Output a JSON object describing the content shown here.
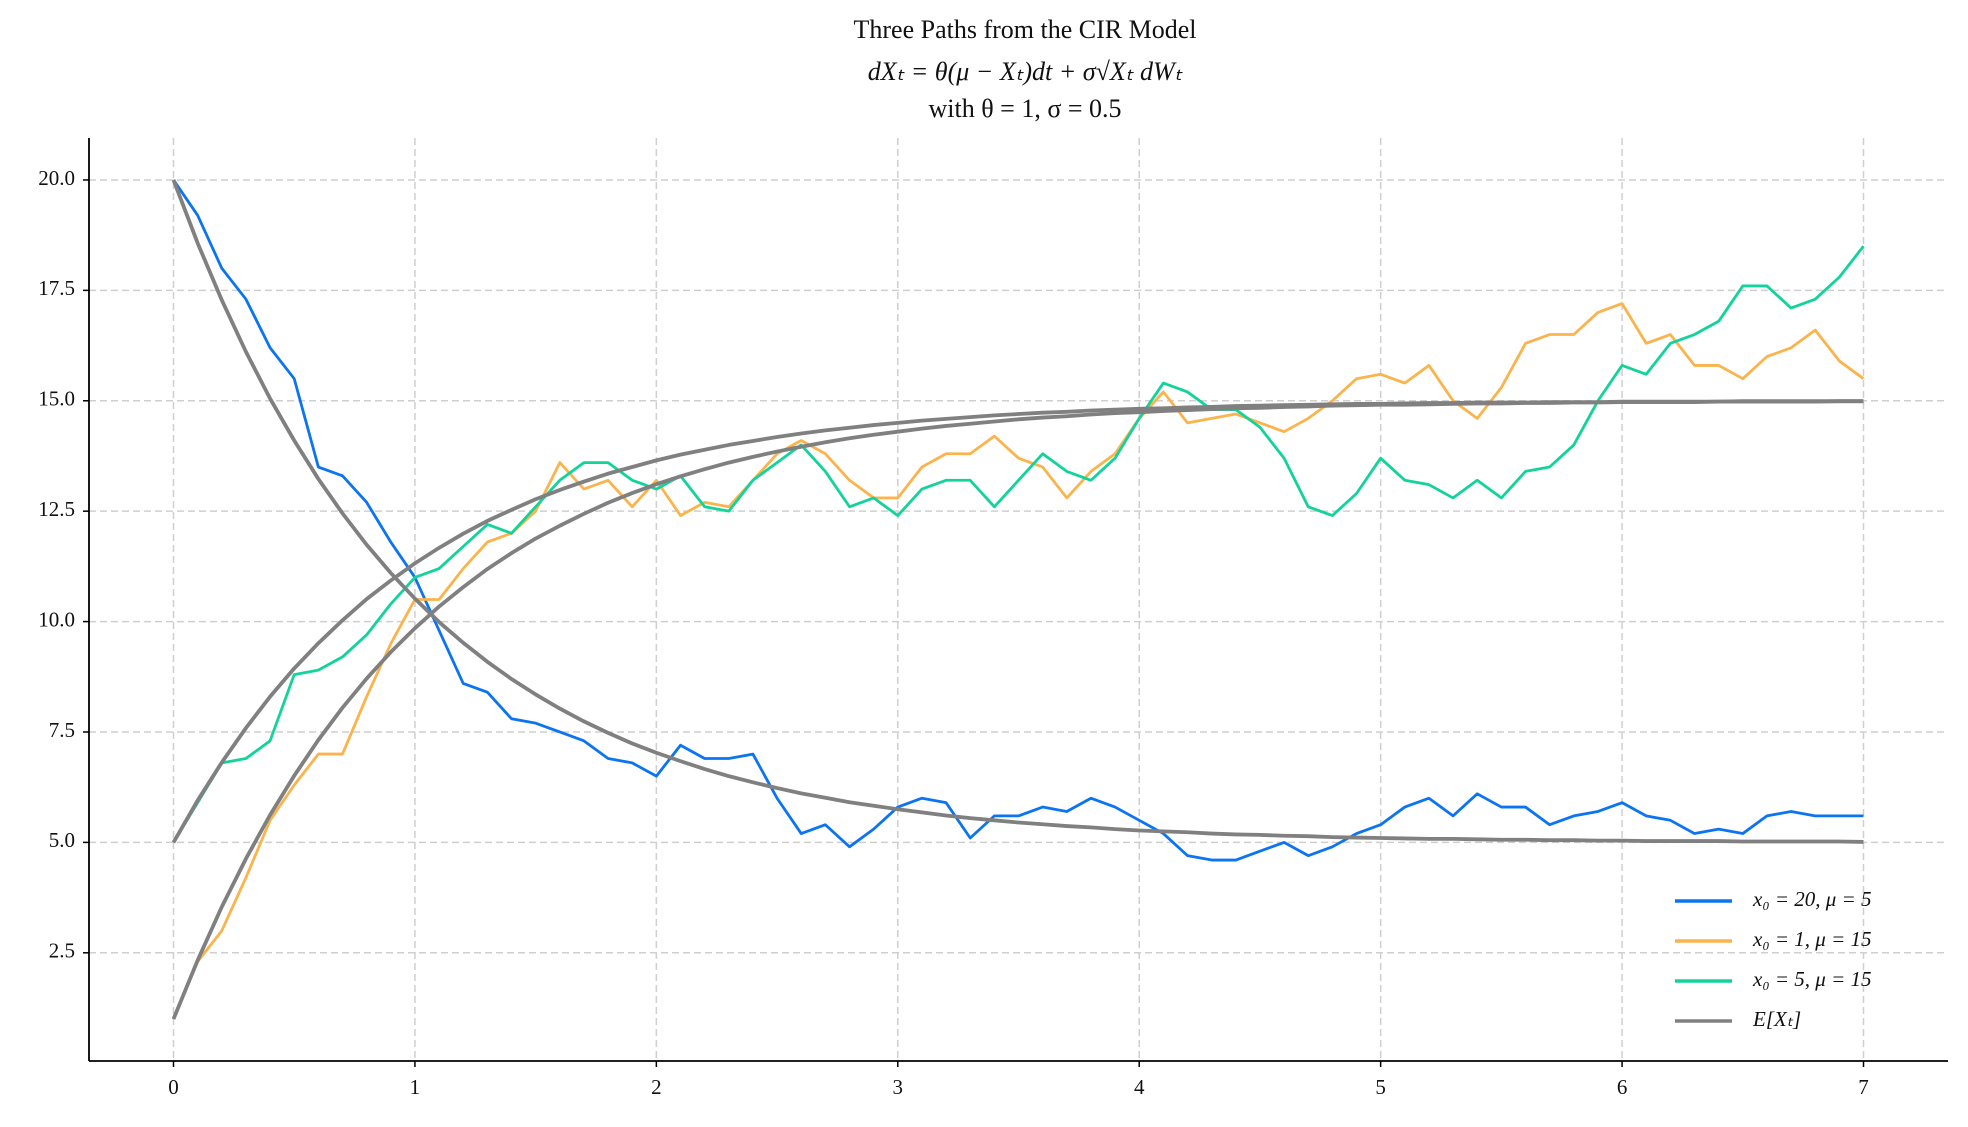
{
  "chart_data": {
    "type": "line",
    "title": "Three Paths from the CIR Model",
    "subtitle": "dXₜ = θ(μ − Xₜ)dt + σ√Xₜ dWₜ",
    "annotation": "with θ = 1, σ = 0.5",
    "x": [
      0,
      0.1,
      0.2,
      0.3,
      0.4,
      0.5,
      0.6,
      0.7,
      0.8,
      0.9,
      1,
      1.1,
      1.2,
      1.3,
      1.4,
      1.5,
      1.6,
      1.7,
      1.8,
      1.9,
      2,
      2.1,
      2.2,
      2.3,
      2.4,
      2.5,
      2.6,
      2.7,
      2.8,
      2.9,
      3,
      3.1,
      3.2,
      3.3,
      3.4,
      3.5,
      3.6,
      3.7,
      3.8,
      3.9,
      4,
      4.1,
      4.2,
      4.3,
      4.4,
      4.5,
      4.6,
      4.7,
      4.8,
      4.9,
      5,
      5.1,
      5.2,
      5.3,
      5.4,
      5.5,
      5.6,
      5.7,
      5.8,
      5.9,
      6,
      6.1,
      6.2,
      6.3,
      6.4,
      6.5,
      6.6,
      6.7,
      6.8,
      6.9,
      7
    ],
    "series": [
      {
        "name": "x₀ = 20, μ = 5",
        "color": "#0b74f2",
        "values": [
          20,
          19.2,
          18.0,
          17.3,
          16.2,
          15.5,
          13.5,
          13.3,
          12.7,
          11.8,
          11.0,
          9.8,
          8.6,
          8.4,
          7.8,
          7.7,
          7.5,
          7.3,
          6.9,
          6.8,
          6.5,
          7.2,
          6.9,
          6.9,
          7.0,
          6.0,
          5.2,
          5.4,
          4.9,
          5.3,
          5.8,
          6.0,
          5.9,
          5.1,
          5.6,
          5.6,
          5.8,
          5.7,
          6.0,
          5.8,
          5.5,
          5.2,
          4.7,
          4.6,
          4.6,
          4.8,
          5.0,
          4.7,
          4.9,
          5.2,
          5.4,
          5.8,
          6.0,
          5.6,
          6.1,
          5.8,
          5.8,
          5.4,
          5.6,
          5.7,
          5.9,
          5.6,
          5.5,
          5.2,
          5.3,
          5.2,
          5.6,
          5.7,
          5.6,
          5.6,
          5.6
        ]
      },
      {
        "name": "x₀ = 1, μ = 15",
        "color": "#fbb44c",
        "values": [
          1.0,
          2.3,
          3.0,
          4.2,
          5.5,
          6.3,
          7.0,
          7.0,
          8.3,
          9.5,
          10.5,
          10.5,
          11.2,
          11.8,
          12.0,
          12.5,
          13.6,
          13.0,
          13.2,
          12.6,
          13.2,
          12.4,
          12.7,
          12.6,
          13.2,
          13.8,
          14.1,
          13.8,
          13.2,
          12.8,
          12.8,
          13.5,
          13.8,
          13.8,
          14.2,
          13.7,
          13.5,
          12.8,
          13.4,
          13.8,
          14.6,
          15.2,
          14.5,
          14.6,
          14.7,
          14.5,
          14.3,
          14.6,
          15.0,
          15.5,
          15.6,
          15.4,
          15.8,
          15.0,
          14.6,
          15.3,
          16.3,
          16.5,
          16.5,
          17.0,
          17.2,
          16.3,
          16.5,
          15.8,
          15.8,
          15.5,
          16.0,
          16.2,
          16.6,
          15.9,
          15.5
        ]
      },
      {
        "name": "x₀ = 5, μ = 15",
        "color": "#12d39a",
        "values": [
          5.0,
          5.9,
          6.8,
          6.9,
          7.3,
          8.8,
          8.9,
          9.2,
          9.7,
          10.4,
          11.0,
          11.2,
          11.7,
          12.2,
          12.0,
          12.6,
          13.2,
          13.6,
          13.6,
          13.2,
          13.0,
          13.3,
          12.6,
          12.5,
          13.2,
          13.6,
          14.0,
          13.4,
          12.6,
          12.8,
          12.4,
          13.0,
          13.2,
          13.2,
          12.6,
          13.2,
          13.8,
          13.4,
          13.2,
          13.7,
          14.6,
          15.4,
          15.2,
          14.8,
          14.8,
          14.4,
          13.7,
          12.6,
          12.4,
          12.9,
          13.7,
          13.2,
          13.1,
          12.8,
          13.2,
          12.8,
          13.4,
          13.5,
          14.0,
          15.0,
          15.8,
          15.6,
          16.3,
          16.5,
          16.8,
          17.6,
          17.6,
          17.1,
          17.3,
          17.8,
          18.5
        ]
      },
      {
        "name": "E[Xₜ]",
        "color": "#808080",
        "values": [
          20,
          18.57,
          17.28,
          16.11,
          15.05,
          14.1,
          13.23,
          12.45,
          11.74,
          11.1,
          10.52,
          9.99,
          9.52,
          9.09,
          8.7,
          8.35,
          8.03,
          7.74,
          7.48,
          7.24,
          7.03,
          6.84,
          6.66,
          6.5,
          6.36,
          6.23,
          6.11,
          6.01,
          5.91,
          5.83,
          5.75,
          5.68,
          5.61,
          5.55,
          5.5,
          5.45,
          5.41,
          5.37,
          5.34,
          5.3,
          5.27,
          5.25,
          5.23,
          5.2,
          5.18,
          5.17,
          5.15,
          5.14,
          5.12,
          5.11,
          5.1,
          5.09,
          5.08,
          5.08,
          5.07,
          5.06,
          5.06,
          5.05,
          5.05,
          5.04,
          5.04,
          5.03,
          5.03,
          5.03,
          5.03,
          5.02,
          5.02,
          5.02,
          5.02,
          5.02,
          5.01
        ]
      },
      {
        "color": "#808080",
        "values": [
          1,
          2.33,
          3.54,
          4.63,
          5.62,
          6.51,
          7.32,
          8.05,
          8.71,
          9.31,
          9.85,
          10.34,
          10.78,
          11.19,
          11.55,
          11.88,
          12.17,
          12.44,
          12.69,
          12.91,
          13.11,
          13.29,
          13.45,
          13.6,
          13.73,
          13.85,
          13.96,
          14.06,
          14.15,
          14.23,
          14.3,
          14.37,
          14.43,
          14.48,
          14.53,
          14.58,
          14.62,
          14.65,
          14.69,
          14.72,
          14.74,
          14.77,
          14.79,
          14.81,
          14.83,
          14.84,
          14.86,
          14.87,
          14.89,
          14.9,
          14.91,
          14.91,
          14.92,
          14.93,
          14.94,
          14.94,
          14.95,
          14.95,
          14.96,
          14.96,
          14.97,
          14.97,
          14.97,
          14.97,
          14.98,
          14.98,
          14.98,
          14.98,
          14.98,
          14.99,
          14.99
        ]
      },
      {
        "color": "#808080",
        "values": [
          5,
          5.95,
          6.81,
          7.59,
          8.3,
          8.94,
          9.51,
          10.03,
          10.51,
          10.93,
          11.32,
          11.67,
          11.99,
          12.28,
          12.53,
          12.77,
          12.98,
          13.17,
          13.35,
          13.5,
          13.65,
          13.78,
          13.89,
          14.0,
          14.09,
          14.18,
          14.26,
          14.33,
          14.39,
          14.45,
          14.5,
          14.55,
          14.59,
          14.63,
          14.67,
          14.7,
          14.73,
          14.75,
          14.78,
          14.8,
          14.82,
          14.83,
          14.85,
          14.86,
          14.88,
          14.89,
          14.9,
          14.91,
          14.92,
          14.93,
          14.93,
          14.94,
          14.95,
          14.95,
          14.96,
          14.96,
          14.96,
          14.97,
          14.97,
          14.97,
          14.98,
          14.98,
          14.98,
          14.98,
          14.98,
          14.99,
          14.99,
          14.99,
          14.99,
          14.99,
          14.99
        ]
      }
    ],
    "xlim": [
      -0.35,
      7.35
    ],
    "ylim": [
      0.05,
      20.95
    ],
    "xticks": [
      0,
      1,
      2,
      3,
      4,
      5,
      6,
      7
    ],
    "yticks": [
      2.5,
      {
        "value": 5,
        "label": "5.0"
      },
      7.5,
      {
        "value": 10,
        "label": "10.0"
      },
      12.5,
      {
        "value": 15,
        "label": "15.0"
      },
      17.5,
      {
        "value": 20,
        "label": "20.0"
      }
    ],
    "grid": true,
    "legend": "lower right"
  }
}
